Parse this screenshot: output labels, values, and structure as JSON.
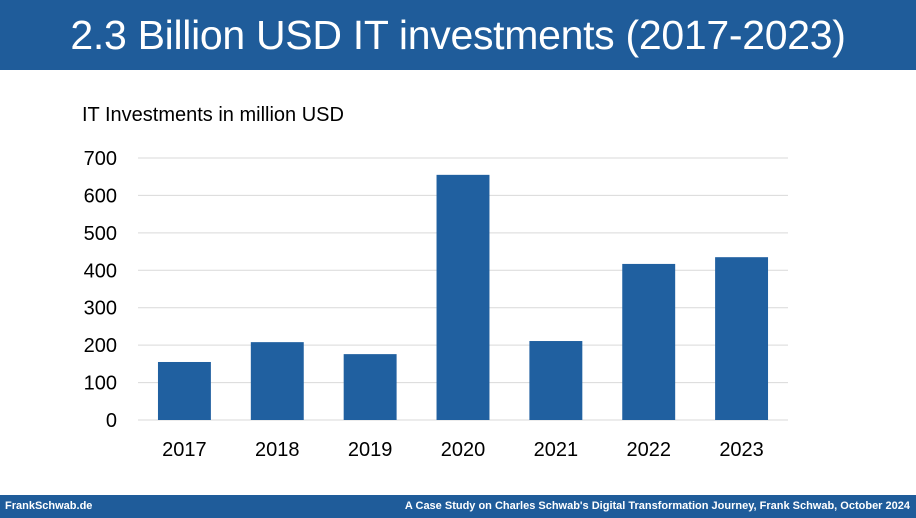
{
  "header": {
    "title": "2.3 Billion USD IT investments (2017-2023)"
  },
  "footer": {
    "left": "FrankSchwab.de",
    "right": "A Case Study on Charles Schwab's Digital Transformation Journey, Frank Schwab, October 2024"
  },
  "colors": {
    "brand": "#1f5c9a",
    "bar": "#2060a0",
    "gridline": "#d9d9d9"
  },
  "chart_data": {
    "type": "bar",
    "title": "IT Investments in million USD",
    "xlabel": "",
    "ylabel": "",
    "categories": [
      "2017",
      "2018",
      "2019",
      "2020",
      "2021",
      "2022",
      "2023"
    ],
    "values": [
      155,
      208,
      176,
      655,
      211,
      417,
      435
    ],
    "ylim": [
      0,
      700
    ],
    "yticks": [
      "0",
      "100",
      "200",
      "300",
      "400",
      "500",
      "600",
      "700"
    ],
    "grid": true,
    "legend": "none"
  }
}
